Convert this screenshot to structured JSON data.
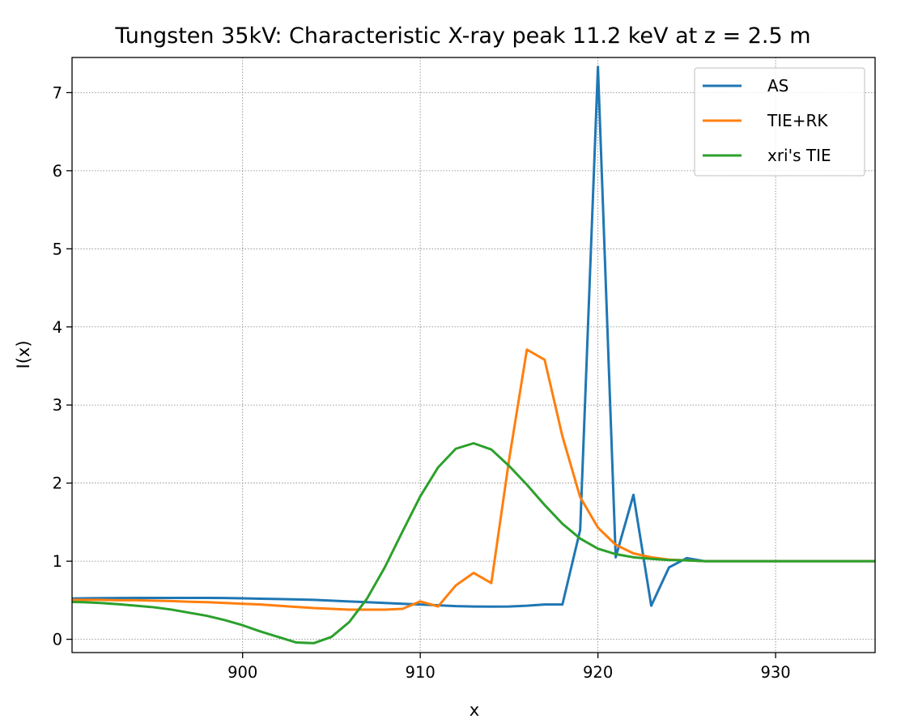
{
  "chart_data": {
    "type": "line",
    "title": "Tungsten 35kV: Characteristic X-ray peak 11.2 keV at z = 2.5 m",
    "xlabel": "x",
    "ylabel": "I(x)",
    "xlim": [
      890.4,
      935.6
    ],
    "ylim": [
      -0.17,
      7.45
    ],
    "xticks": [
      900,
      910,
      920,
      930
    ],
    "yticks": [
      0,
      1,
      2,
      3,
      4,
      5,
      6,
      7
    ],
    "grid": true,
    "legend_position": "upper right",
    "series": [
      {
        "name": "AS",
        "color": "#1f77b4",
        "x": [
          890,
          891,
          892,
          893,
          894,
          895,
          896,
          897,
          898,
          899,
          900,
          901,
          902,
          903,
          904,
          905,
          906,
          907,
          908,
          909,
          910,
          911,
          912,
          913,
          914,
          915,
          916,
          917,
          918,
          919,
          920,
          921,
          922,
          923,
          924,
          925,
          926,
          927,
          928,
          929,
          930,
          931,
          932,
          933,
          934,
          935,
          936
        ],
        "y": [
          0.52,
          0.525,
          0.527,
          0.528,
          0.53,
          0.53,
          0.53,
          0.53,
          0.53,
          0.528,
          0.525,
          0.52,
          0.515,
          0.51,
          0.505,
          0.495,
          0.485,
          0.475,
          0.465,
          0.455,
          0.445,
          0.435,
          0.425,
          0.42,
          0.418,
          0.42,
          0.43,
          0.445,
          0.445,
          1.4,
          7.33,
          1.05,
          1.85,
          0.43,
          0.92,
          1.04,
          1.0,
          1.0,
          1.0,
          1.0,
          1.0,
          1.0,
          1.0,
          1.0,
          1.0,
          1.0,
          1.0
        ]
      },
      {
        "name": "TIE+RK",
        "color": "#ff7f0e",
        "x": [
          890,
          891,
          892,
          893,
          894,
          895,
          896,
          897,
          898,
          899,
          900,
          901,
          902,
          903,
          904,
          905,
          906,
          907,
          908,
          909,
          910,
          911,
          912,
          913,
          914,
          915,
          916,
          917,
          918,
          919,
          920,
          921,
          922,
          923,
          924,
          925,
          926,
          927,
          928,
          929,
          930,
          931,
          932,
          933,
          934,
          935,
          936
        ],
        "y": [
          0.505,
          0.505,
          0.505,
          0.5,
          0.5,
          0.495,
          0.49,
          0.48,
          0.475,
          0.465,
          0.455,
          0.445,
          0.43,
          0.415,
          0.4,
          0.39,
          0.38,
          0.38,
          0.38,
          0.39,
          0.485,
          0.42,
          0.69,
          0.85,
          0.72,
          2.3,
          3.71,
          3.58,
          2.6,
          1.82,
          1.43,
          1.21,
          1.1,
          1.05,
          1.02,
          1.01,
          1.0,
          1.0,
          1.0,
          1.0,
          1.0,
          1.0,
          1.0,
          1.0,
          1.0,
          1.0,
          1.0
        ]
      },
      {
        "name": "xri's TIE",
        "color": "#2ca02c",
        "x": [
          890,
          891,
          892,
          893,
          894,
          895,
          896,
          897,
          898,
          899,
          900,
          901,
          902,
          903,
          904,
          905,
          906,
          907,
          908,
          909,
          910,
          911,
          912,
          913,
          914,
          915,
          916,
          917,
          918,
          919,
          920,
          921,
          922,
          923,
          924,
          925,
          926,
          927,
          928,
          929,
          930,
          931,
          932,
          933,
          934,
          935,
          936
        ],
        "y": [
          0.48,
          0.475,
          0.465,
          0.45,
          0.43,
          0.41,
          0.38,
          0.34,
          0.3,
          0.245,
          0.18,
          0.1,
          0.03,
          -0.04,
          -0.05,
          0.03,
          0.22,
          0.52,
          0.92,
          1.38,
          1.83,
          2.2,
          2.44,
          2.51,
          2.43,
          2.22,
          1.98,
          1.72,
          1.48,
          1.29,
          1.16,
          1.09,
          1.05,
          1.03,
          1.015,
          1.01,
          1.0,
          1.0,
          1.0,
          1.0,
          1.0,
          1.0,
          1.0,
          1.0,
          1.0,
          1.0,
          1.0
        ]
      }
    ]
  }
}
